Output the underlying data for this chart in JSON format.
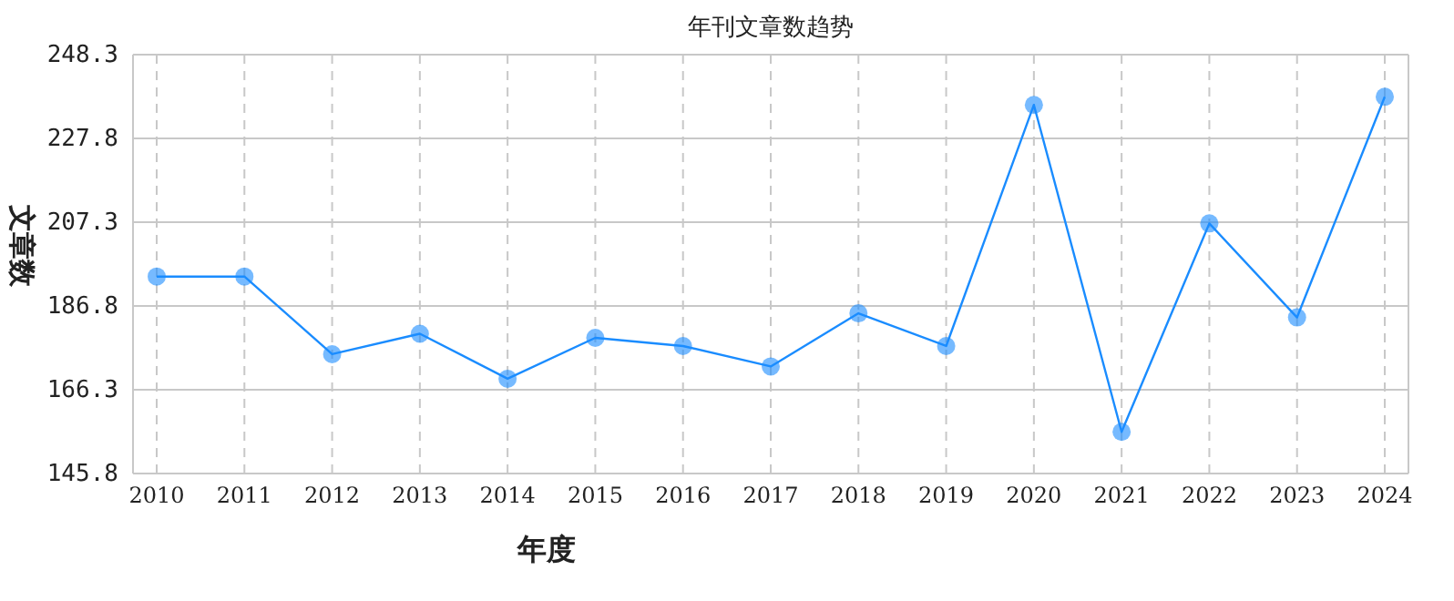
{
  "chart_data": {
    "type": "line",
    "title": "年刊文章数趋势",
    "xlabel": "年度",
    "ylabel": "文章数",
    "categories": [
      "2010",
      "2011",
      "2012",
      "2013",
      "2014",
      "2015",
      "2016",
      "2017",
      "2018",
      "2019",
      "2020",
      "2021",
      "2022",
      "2023",
      "2024"
    ],
    "series": [
      {
        "color": "#1a8cff",
        "values": [
          194,
          194,
          175,
          180,
          169,
          179,
          177,
          172,
          185,
          177,
          236,
          156,
          207,
          184,
          238
        ]
      }
    ],
    "ylim": [
      145.8,
      248.3
    ],
    "yticks": [
      145.8,
      166.3,
      186.8,
      207.3,
      227.8,
      248.3
    ],
    "grid": true,
    "marker": "circle",
    "line_style": "solid"
  }
}
